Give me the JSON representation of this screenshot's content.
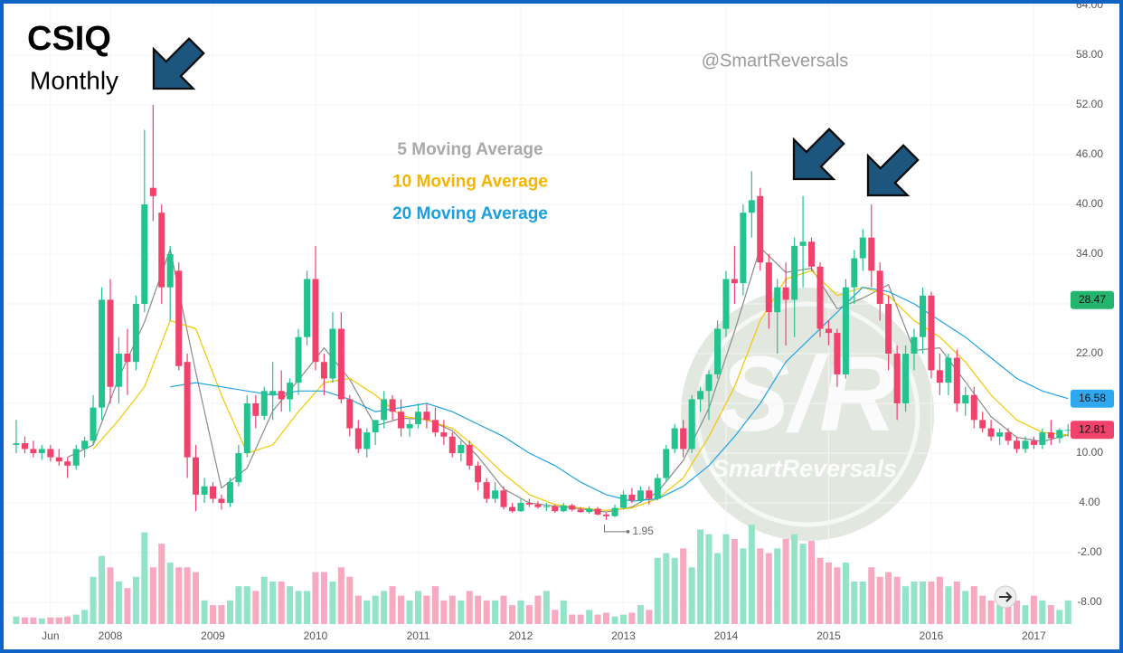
{
  "chart_data": {
    "type": "candlestick",
    "title": "CSIQ",
    "subtitle": "Monthly",
    "handle": "@SmartReversals",
    "watermark": {
      "logo": "S/R",
      "text": "SmartReversals"
    },
    "up_color": "#22c38e",
    "down_color": "#f0426b",
    "volume_up_color": "#93e3c8",
    "volume_down_color": "#f6a9bf",
    "x": [
      2007.083,
      2007.167,
      2007.25,
      2007.333,
      2007.417,
      2007.5,
      2007.583,
      2007.667,
      2007.75,
      2007.833,
      2007.917,
      2008,
      2008.083,
      2008.167,
      2008.25,
      2008.333,
      2008.417,
      2008.5,
      2008.583,
      2008.667,
      2008.75,
      2008.833,
      2008.917,
      2009,
      2009.083,
      2009.167,
      2009.25,
      2009.333,
      2009.417,
      2009.5,
      2009.583,
      2009.667,
      2009.75,
      2009.833,
      2009.917,
      2010,
      2010.083,
      2010.167,
      2010.25,
      2010.333,
      2010.417,
      2010.5,
      2010.583,
      2010.667,
      2010.75,
      2010.833,
      2010.917,
      2011,
      2011.083,
      2011.167,
      2011.25,
      2011.333,
      2011.417,
      2011.5,
      2011.583,
      2011.667,
      2011.75,
      2011.833,
      2011.917,
      2012,
      2012.083,
      2012.167,
      2012.25,
      2012.333,
      2012.417,
      2012.5,
      2012.583,
      2012.667,
      2012.75,
      2012.833,
      2012.917,
      2013,
      2013.083,
      2013.167,
      2013.25,
      2013.333,
      2013.417,
      2013.5,
      2013.583,
      2013.667,
      2013.75,
      2013.833,
      2013.917,
      2014,
      2014.083,
      2014.167,
      2014.25,
      2014.333,
      2014.417,
      2014.5,
      2014.583,
      2014.667,
      2014.75,
      2014.833,
      2014.917,
      2015,
      2015.083,
      2015.167,
      2015.25,
      2015.333,
      2015.417,
      2015.5,
      2015.583,
      2015.667,
      2015.75,
      2015.833,
      2015.917,
      2016,
      2016.083,
      2016.167,
      2016.25,
      2016.333,
      2016.417,
      2016.5,
      2016.583,
      2016.667,
      2016.75,
      2016.833,
      2016.917,
      2017,
      2017.083,
      2017.167,
      2017.25,
      2017.333
    ],
    "open": [
      11,
      11.2,
      10.5,
      10,
      10.5,
      9.5,
      9,
      8.5,
      10.5,
      11.5,
      15.5,
      28.5,
      18,
      22,
      21,
      28,
      42,
      39,
      30,
      32,
      21,
      9.5,
      5,
      6,
      4.5,
      4,
      6.5,
      10,
      16,
      14.5,
      17,
      17.5,
      16.5,
      18.5,
      24,
      31,
      21,
      19,
      25,
      16.5,
      13,
      10.5,
      12.5,
      14,
      16.5,
      15,
      13,
      13.5,
      15,
      14,
      12.5,
      12,
      10,
      11,
      8.5,
      6.5,
      4.5,
      5.5,
      3.5,
      3,
      4,
      3.8,
      3.5,
      3.6,
      3,
      3.7,
      3.2,
      2.9,
      3.3,
      2.6,
      2.4,
      3.4,
      5,
      4.3,
      5.5,
      4.5,
      7,
      10.5,
      13,
      10.5,
      16.5,
      17.5,
      19.5,
      25,
      31,
      30.5,
      39,
      41,
      33,
      27,
      30,
      28.5,
      35,
      35.5,
      32.5,
      25,
      24.5,
      19.5,
      30,
      33.5,
      36,
      32,
      28,
      22,
      16,
      22,
      24,
      29,
      20,
      18.5,
      21.5,
      16,
      17,
      14,
      13,
      12,
      12.5,
      11.5,
      10.5,
      11.5,
      11,
      12.5,
      11.8,
      12.8
    ],
    "high": [
      14,
      12,
      11.5,
      11,
      11,
      10.5,
      9.5,
      11,
      12,
      17,
      30,
      31,
      24,
      25,
      29,
      49,
      52,
      40,
      35,
      33,
      22,
      11,
      7,
      6.5,
      5,
      7,
      11,
      17,
      17,
      18,
      21,
      20,
      19,
      25,
      32,
      35,
      22,
      27,
      27,
      17,
      14,
      13,
      14,
      17.5,
      17,
      16.5,
      14,
      16,
      16,
      15.5,
      14,
      12.5,
      11.5,
      11.5,
      9,
      7,
      6.5,
      6,
      4,
      4.5,
      4.5,
      4.2,
      4,
      3.8,
      4,
      3.9,
      3.5,
      3.6,
      3.5,
      2.8,
      3.8,
      5.5,
      5.8,
      6,
      6,
      7.5,
      11,
      13.5,
      14,
      17,
      18,
      20,
      26,
      32,
      35,
      40,
      44,
      42,
      34,
      31,
      33,
      36,
      41,
      36,
      33,
      26,
      25,
      31,
      34.5,
      37,
      40,
      33,
      29,
      23,
      23,
      25,
      30,
      29.5,
      22,
      22,
      22.5,
      18,
      18,
      15,
      14,
      13,
      13,
      12,
      12,
      12,
      13,
      14,
      13,
      13.5
    ],
    "low": [
      10,
      10,
      9.5,
      9.2,
      9,
      8.5,
      7,
      8,
      9.5,
      11,
      14,
      16,
      16,
      17,
      20,
      27,
      38,
      28,
      26,
      20,
      7,
      3,
      4,
      4,
      3.2,
      3.5,
      6,
      9.5,
      13,
      14,
      14,
      15,
      15,
      17,
      23,
      20,
      17,
      18.5,
      16,
      12,
      10,
      9.5,
      11,
      13,
      14,
      12,
      12,
      13,
      13,
      12,
      11,
      9.5,
      9,
      8,
      5.5,
      4,
      4,
      3.2,
      2.8,
      2.9,
      3.5,
      3.3,
      3,
      2.8,
      2.9,
      3,
      2.8,
      2.7,
      2.5,
      1.95,
      2.3,
      3.2,
      4,
      4,
      3.8,
      4.3,
      6.5,
      10,
      9.5,
      10,
      15,
      14,
      19,
      24,
      28,
      29,
      36,
      32,
      25,
      22,
      23,
      24,
      30,
      32,
      24,
      23,
      18,
      19,
      28,
      32,
      30,
      26,
      20,
      14,
      15,
      20,
      22,
      19,
      17,
      17,
      15,
      14.5,
      13,
      12.5,
      11.5,
      11,
      11,
      10,
      10,
      10.5,
      10.5,
      11,
      11.2,
      12
    ],
    "close": [
      11.2,
      10.5,
      10,
      10.5,
      9.5,
      9,
      8.5,
      10.5,
      11.5,
      15.5,
      28.5,
      18,
      22,
      21,
      28,
      40,
      41,
      30,
      34,
      20.5,
      9.5,
      5,
      6,
      4.5,
      4,
      6.5,
      10,
      16,
      14.5,
      17.5,
      17.5,
      16.5,
      18.5,
      24,
      31,
      21,
      19,
      25,
      16.5,
      13,
      10.5,
      12.5,
      14,
      16.5,
      15,
      13,
      13.5,
      15,
      14,
      12.5,
      12,
      10,
      11,
      8.5,
      6.5,
      4.5,
      5.5,
      3.5,
      3,
      4,
      3.8,
      3.5,
      3.6,
      3,
      3.7,
      3.2,
      2.9,
      3.3,
      2.6,
      2.4,
      3.4,
      5,
      4.3,
      5.5,
      4.5,
      7,
      10.5,
      13,
      10.5,
      16.5,
      17.5,
      19.5,
      25,
      31,
      30.5,
      39,
      40.5,
      33,
      27,
      30,
      28.5,
      35,
      35.5,
      32.5,
      25,
      24.5,
      19.5,
      30,
      33.5,
      36,
      32,
      28,
      22,
      16,
      22,
      24,
      29,
      20,
      18.5,
      21.5,
      16,
      17,
      14,
      13,
      12,
      12.5,
      11.5,
      10.5,
      11.5,
      11,
      12.5,
      11.8,
      12.8,
      12.81
    ],
    "volume": [
      8,
      7,
      7,
      6,
      7,
      7,
      8,
      10,
      15,
      50,
      72,
      60,
      45,
      38,
      50,
      97,
      60,
      85,
      65,
      60,
      60,
      55,
      25,
      20,
      20,
      25,
      40,
      40,
      35,
      50,
      45,
      45,
      40,
      35,
      35,
      55,
      55,
      45,
      60,
      50,
      30,
      25,
      30,
      35,
      40,
      30,
      25,
      35,
      30,
      40,
      25,
      30,
      25,
      35,
      30,
      25,
      25,
      30,
      20,
      25,
      20,
      30,
      35,
      15,
      25,
      10,
      10,
      15,
      10,
      12,
      8,
      10,
      12,
      20,
      15,
      70,
      75,
      70,
      80,
      60,
      100,
      95,
      75,
      95,
      90,
      80,
      105,
      80,
      75,
      80,
      90,
      95,
      85,
      88,
      70,
      65,
      60,
      65,
      45,
      45,
      60,
      50,
      55,
      50,
      40,
      45,
      45,
      45,
      50,
      40,
      45,
      35,
      40,
      30,
      25,
      20,
      30,
      25,
      20,
      30,
      25,
      20,
      15,
      25
    ],
    "volume_lim": [
      0,
      110
    ],
    "xlim": [
      2006.925,
      2017.375
    ],
    "xticks": [
      {
        "value": 2007.417,
        "label": "Jun"
      },
      2008,
      2009,
      2010,
      2011,
      2012,
      2013,
      2014,
      2015,
      2016,
      2017
    ],
    "ylim": [
      -14.1,
      64.65
    ],
    "yticks": [
      {
        "value": -8,
        "label": "-8.00"
      },
      {
        "value": -2,
        "label": "-2.00"
      },
      {
        "value": 4,
        "label": "4.00"
      },
      {
        "value": 10,
        "label": "10.00"
      },
      {
        "value": 16,
        "label": "16.00"
      },
      {
        "value": 22,
        "label": "22.00"
      },
      {
        "value": 28,
        "label": "28.00"
      },
      {
        "value": 34,
        "label": "34.00"
      },
      {
        "value": 40,
        "label": "40.00"
      },
      {
        "value": 46,
        "label": "46.00"
      },
      {
        "value": 52,
        "label": "52.00"
      },
      {
        "value": 58,
        "label": "58.00"
      },
      {
        "value": 64,
        "label": "64.00"
      }
    ],
    "grid": true,
    "moving_averages": {
      "x": [
        2007.083,
        2007.333,
        2007.583,
        2007.833,
        2008.083,
        2008.333,
        2008.583,
        2008.833,
        2009.083,
        2009.333,
        2009.583,
        2009.833,
        2010.083,
        2010.333,
        2010.583,
        2010.833,
        2011.083,
        2011.333,
        2011.583,
        2011.833,
        2012.083,
        2012.333,
        2012.583,
        2012.833,
        2013.083,
        2013.333,
        2013.583,
        2013.833,
        2014.083,
        2014.333,
        2014.583,
        2014.833,
        2015.083,
        2015.333,
        2015.583,
        2015.833,
        2016.083,
        2016.333,
        2016.583,
        2016.833,
        2017.083,
        2017.333
      ],
      "series": [
        {
          "name": "5 Moving Average",
          "color": "#8a8a8a",
          "legend_color": "#a9a9a9",
          "values": [
            null,
            null,
            9.5,
            11,
            19.1,
            25.8,
            34.6,
            19.8,
            5.8,
            8.2,
            15.1,
            18.8,
            22.7,
            18.9,
            13.3,
            14.2,
            14.1,
            12.7,
            9.6,
            5.7,
            4,
            3.6,
            3.3,
            2.9,
            3.5,
            5.3,
            9.1,
            15.4,
            24.7,
            34.8,
            31.8,
            32.3,
            27.4,
            28.7,
            30.3,
            22.4,
            22.7,
            18.6,
            14.4,
            11.9,
            11.4,
            12.2
          ]
        },
        {
          "name": "10 Moving Average",
          "color": "#f3c800",
          "legend_color": "#f5b400",
          "values": [
            null,
            null,
            null,
            10.5,
            14,
            18,
            26,
            25,
            17,
            10,
            11,
            15,
            18.5,
            19,
            17,
            14.5,
            14,
            13,
            10.5,
            7.5,
            5,
            3.8,
            3.4,
            3.1,
            3.4,
            4.5,
            7,
            12,
            18,
            26,
            31,
            32,
            29,
            30,
            29,
            26,
            24,
            21,
            17,
            14,
            12.5,
            12.2
          ]
        },
        {
          "name": "20 Moving Average",
          "color": "#1fa3e6",
          "legend_color": "#1aa0e0",
          "values": [
            null,
            null,
            null,
            null,
            null,
            null,
            18,
            18.5,
            18,
            17.5,
            17,
            17.5,
            17.5,
            16.5,
            15,
            15.5,
            16,
            15,
            13.5,
            12,
            10,
            8.5,
            6.5,
            5,
            4.2,
            4.5,
            6,
            8.5,
            12,
            16,
            21,
            24,
            27,
            30,
            29.5,
            28,
            26,
            24,
            21.5,
            19,
            17.5,
            16.58
          ]
        }
      ]
    },
    "price_tags": [
      {
        "value": 28.47,
        "color": "#23b56e",
        "text_color": "#111111"
      },
      {
        "value": 16.58,
        "color": "#2fa8f0",
        "text_color": "#111111"
      },
      {
        "value": 12.81,
        "color": "#f0426b",
        "text_color": "#111111"
      }
    ],
    "low_annotation": 1.95
  }
}
